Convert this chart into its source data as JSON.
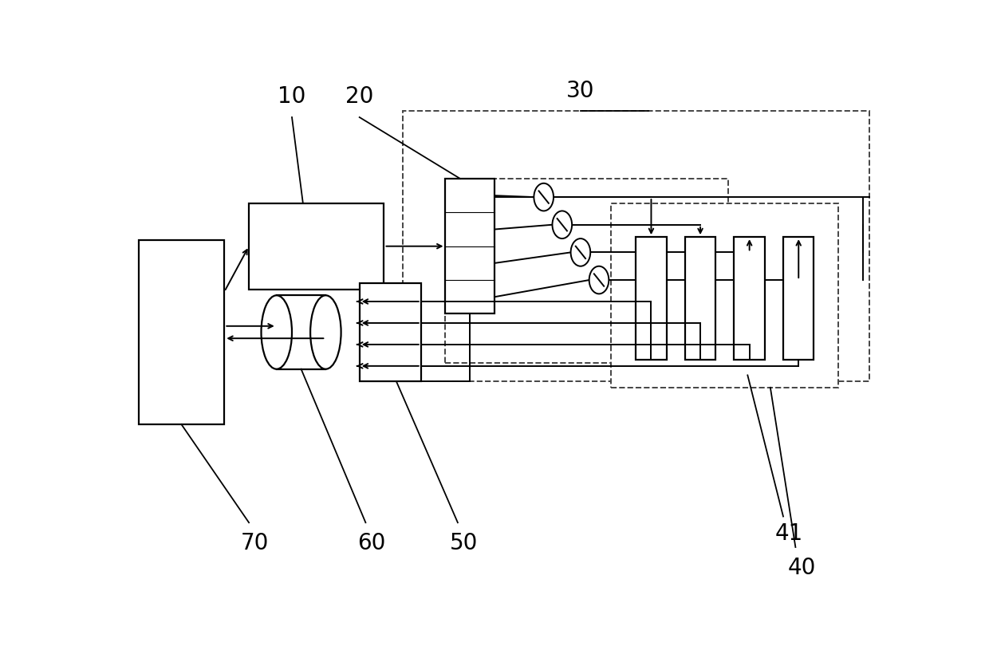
{
  "bg_color": "#ffffff",
  "line_color": "#000000",
  "label_fontsize": 20,
  "figsize": [
    12.4,
    8.4
  ],
  "dpi": 100,
  "lw_main": 1.6,
  "lw_conn": 1.4,
  "lw_dash": 1.4,
  "lw_label": 1.3
}
